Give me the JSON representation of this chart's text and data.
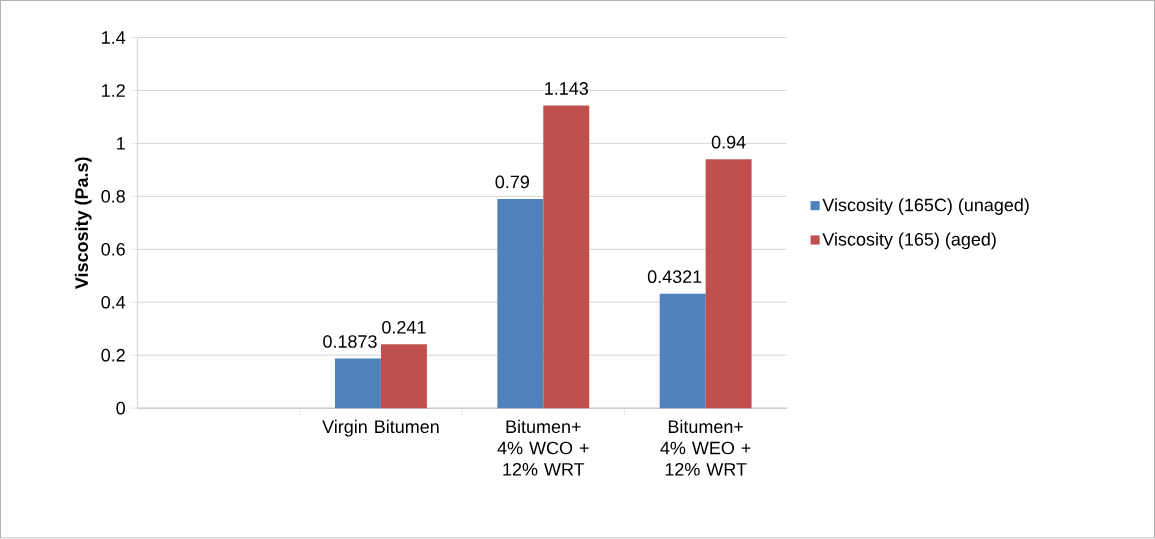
{
  "chart_data": {
    "type": "bar",
    "ylabel": "Viscosity (Pa.s)",
    "categories": [
      null,
      "Virgin Bitumen",
      "Bitumen+ 4% WCO + 12% WRT",
      "Bitumen+ 4% WEO + 12% WRT"
    ],
    "series": [
      {
        "name": "Viscosity  (165C) (unaged)",
        "color": "#4f81bd",
        "values": [
          null,
          0.1873,
          0.79,
          0.4321
        ]
      },
      {
        "name": "Viscosity (165) (aged)",
        "color": "#c0504d",
        "values": [
          null,
          0.241,
          1.143,
          0.94
        ]
      }
    ],
    "ylim": [
      0,
      1.4
    ],
    "yticks": [
      0,
      0.2,
      0.4,
      0.6,
      0.8,
      1,
      1.2,
      1.4
    ],
    "grid": "y",
    "legend": "right",
    "data_labels": true
  }
}
